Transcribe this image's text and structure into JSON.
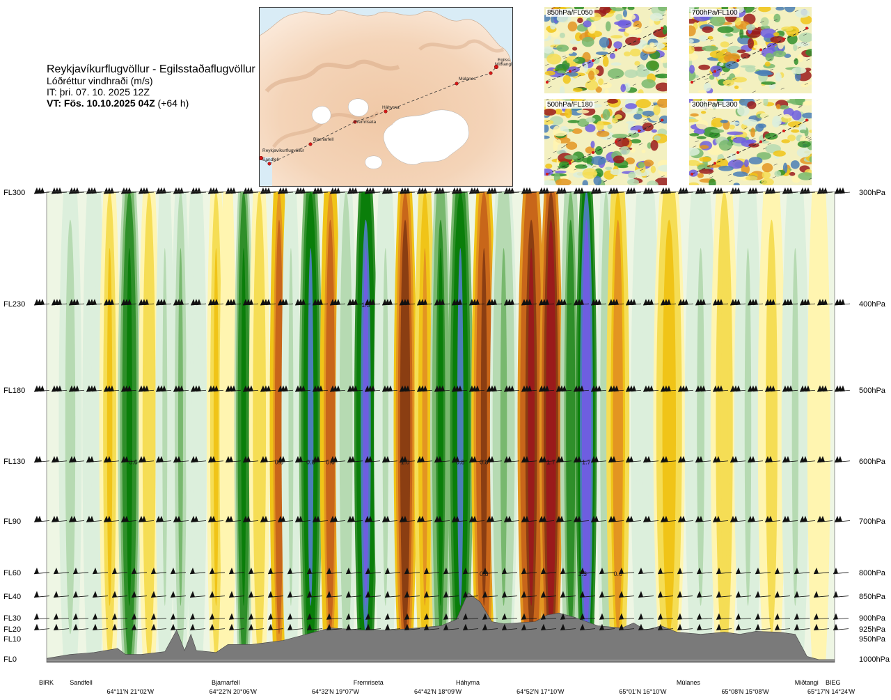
{
  "header": {
    "title": "Reykjavíkurflugvöllur - Egilsstaðaflugvöllur",
    "subtitle": "Lóðréttur vindhraði (m/s)",
    "issue_time": "IT: þri. 07. 10. 2025 12Z",
    "valid_time_bold": "VT: Fös. 10.10.2025 04Z",
    "valid_time_offset": "(+64 h)"
  },
  "route_map": {
    "waypoints": [
      "Reykjavíkurflugvöllur",
      "Sandfell",
      "Bjarnarfell",
      "Fremriseta",
      "Háhyrna",
      "Múlanes",
      "Miðtangi",
      "Egilsstaðaflugvöllur"
    ],
    "waypoint_label_abbrev": "Egilss",
    "route_color": "#d61818"
  },
  "thumbnails": [
    {
      "label": "850hPa/FL050"
    },
    {
      "label": "700hPa/FL100"
    },
    {
      "label": "500hPa/FL180"
    },
    {
      "label": "300hPa/FL300"
    }
  ],
  "chart_data": {
    "type": "heatmap",
    "title": "Lóðréttur vindhraði (m/s)",
    "left_axis_labels": [
      "FL300",
      "FL230",
      "FL180",
      "FL130",
      "FL90",
      "FL60",
      "FL40",
      "FL30",
      "FL20",
      "FL10",
      "FL0"
    ],
    "right_axis_labels": [
      "300hPa",
      "400hPa",
      "500hPa",
      "600hPa",
      "700hPa",
      "800hPa",
      "850hPa",
      "900hPa",
      "925hPa",
      "950hPa",
      "1000hPa"
    ],
    "pressure_levels_hpa": [
      300,
      400,
      500,
      600,
      700,
      800,
      850,
      900,
      925,
      950,
      1000
    ],
    "route_position_range": [
      0,
      100
    ],
    "waypoints": [
      {
        "name": "BIRK",
        "pos": 0
      },
      {
        "name": "Sandfell",
        "pos": 4
      },
      {
        "name": "Bjarnarfell",
        "pos": 22
      },
      {
        "name": "Fremriseta",
        "pos": 40
      },
      {
        "name": "Háhyrna",
        "pos": 53
      },
      {
        "name": "Múlanes",
        "pos": 81
      },
      {
        "name": "Miðtangi",
        "pos": 96
      },
      {
        "name": "BIEG",
        "pos": 100
      }
    ],
    "coordinate_labels": [
      {
        "text": "64°11'N 21°02'W",
        "pos": 11
      },
      {
        "text": "64°22'N 20°06'W",
        "pos": 24
      },
      {
        "text": "64°32'N 19°07'W",
        "pos": 37
      },
      {
        "text": "64°42'N 18°09'W",
        "pos": 50
      },
      {
        "text": "64°52'N 17°10'W",
        "pos": 63
      },
      {
        "text": "65°01'N 16°10'W",
        "pos": 76
      },
      {
        "text": "65°08'N 15°08'W",
        "pos": 89
      },
      {
        "text": "65°17'N 14°24'W",
        "pos": 100
      }
    ],
    "value_labels": [
      {
        "text": "0.6",
        "pos": 11,
        "level": 600
      },
      {
        "text": "0.6",
        "pos": 29.5,
        "level": 600
      },
      {
        "text": "0.8",
        "pos": 33.5,
        "level": 600
      },
      {
        "text": "0.6",
        "pos": 36,
        "level": 600
      },
      {
        "text": "1.0",
        "pos": 45.5,
        "level": 600
      },
      {
        "text": "0.8",
        "pos": 52.5,
        "level": 600
      },
      {
        "text": "0.8",
        "pos": 55.5,
        "level": 600
      },
      {
        "text": "1.7",
        "pos": 64,
        "level": 600
      },
      {
        "text": "1.7",
        "pos": 68.5,
        "level": 600
      },
      {
        "text": "1.3",
        "pos": 40.5,
        "level": 400
      },
      {
        "text": "0.8",
        "pos": 55.5,
        "level": 800
      },
      {
        "text": "1.3",
        "pos": 68,
        "level": 800
      },
      {
        "text": "0.6",
        "pos": 72.5,
        "level": 800
      }
    ],
    "bands": [
      {
        "pos": 3,
        "w": -0.25
      },
      {
        "pos": 6,
        "w": -0.05
      },
      {
        "pos": 8,
        "w": 0.35
      },
      {
        "pos": 10.5,
        "w": -0.8
      },
      {
        "pos": 13,
        "w": 0.3
      },
      {
        "pos": 15,
        "w": -0.2
      },
      {
        "pos": 17,
        "w": -0.35
      },
      {
        "pos": 19,
        "w": -0.15
      },
      {
        "pos": 21.5,
        "w": 0.35
      },
      {
        "pos": 23,
        "w": 0.15
      },
      {
        "pos": 25,
        "w": -0.8
      },
      {
        "pos": 27,
        "w": 0.3
      },
      {
        "pos": 29.5,
        "w": 0.9
      },
      {
        "pos": 31,
        "w": -0.2
      },
      {
        "pos": 33.5,
        "w": -1.1
      },
      {
        "pos": 36,
        "w": 0.9
      },
      {
        "pos": 38,
        "w": -0.3
      },
      {
        "pos": 40.5,
        "w": -1.3
      },
      {
        "pos": 43,
        "w": -0.2
      },
      {
        "pos": 45.5,
        "w": 1.2
      },
      {
        "pos": 48,
        "w": 0.5
      },
      {
        "pos": 50,
        "w": -0.7
      },
      {
        "pos": 52.5,
        "w": -1.0
      },
      {
        "pos": 55.5,
        "w": 1.1
      },
      {
        "pos": 58,
        "w": -0.4
      },
      {
        "pos": 61.5,
        "w": 1.3
      },
      {
        "pos": 64,
        "w": 1.7
      },
      {
        "pos": 66.5,
        "w": -0.6
      },
      {
        "pos": 68.5,
        "w": -1.7
      },
      {
        "pos": 71,
        "w": -0.3
      },
      {
        "pos": 72.5,
        "w": 0.6
      },
      {
        "pos": 76,
        "w": -0.15
      },
      {
        "pos": 79,
        "w": 0.45
      },
      {
        "pos": 83,
        "w": -0.2
      },
      {
        "pos": 86,
        "w": 0.3
      },
      {
        "pos": 89,
        "w": -0.2
      },
      {
        "pos": 92,
        "w": 0.25
      },
      {
        "pos": 95,
        "w": -0.2
      },
      {
        "pos": 98,
        "w": 0.15
      }
    ],
    "terrain_pressure_hpa": [
      {
        "pos": 0,
        "p": 995
      },
      {
        "pos": 3,
        "p": 985
      },
      {
        "pos": 6,
        "p": 980
      },
      {
        "pos": 9,
        "p": 970
      },
      {
        "pos": 10,
        "p": 985
      },
      {
        "pos": 12,
        "p": 985
      },
      {
        "pos": 15,
        "p": 978
      },
      {
        "pos": 16.5,
        "p": 925
      },
      {
        "pos": 17.5,
        "p": 975
      },
      {
        "pos": 18.3,
        "p": 935
      },
      {
        "pos": 19,
        "p": 975
      },
      {
        "pos": 21.5,
        "p": 980
      },
      {
        "pos": 23,
        "p": 960
      },
      {
        "pos": 26,
        "p": 960
      },
      {
        "pos": 30,
        "p": 950
      },
      {
        "pos": 33,
        "p": 935
      },
      {
        "pos": 36,
        "p": 920
      },
      {
        "pos": 40,
        "p": 925
      },
      {
        "pos": 44,
        "p": 925
      },
      {
        "pos": 47,
        "p": 920
      },
      {
        "pos": 50,
        "p": 915
      },
      {
        "pos": 52,
        "p": 900
      },
      {
        "pos": 53.5,
        "p": 840
      },
      {
        "pos": 55,
        "p": 860
      },
      {
        "pos": 56.5,
        "p": 905
      },
      {
        "pos": 58,
        "p": 910
      },
      {
        "pos": 62,
        "p": 905
      },
      {
        "pos": 63.5,
        "p": 890
      },
      {
        "pos": 65,
        "p": 885
      },
      {
        "pos": 67,
        "p": 895
      },
      {
        "pos": 70,
        "p": 915
      },
      {
        "pos": 73,
        "p": 920
      },
      {
        "pos": 74.5,
        "p": 908
      },
      {
        "pos": 76,
        "p": 925
      },
      {
        "pos": 78,
        "p": 915
      },
      {
        "pos": 80,
        "p": 930
      },
      {
        "pos": 83,
        "p": 935
      },
      {
        "pos": 86,
        "p": 930
      },
      {
        "pos": 88,
        "p": 935
      },
      {
        "pos": 90,
        "p": 928
      },
      {
        "pos": 93,
        "p": 930
      },
      {
        "pos": 95,
        "p": 935
      },
      {
        "pos": 96.5,
        "p": 990
      },
      {
        "pos": 98,
        "p": 998
      },
      {
        "pos": 100,
        "p": 998
      }
    ],
    "wind_barb_levels_hpa": [
      300,
      400,
      500,
      600,
      700,
      800,
      850,
      900,
      925
    ],
    "colors": {
      "down_scale": [
        "#dcefdc",
        "#b6dab2",
        "#78b86e",
        "#2f8f2a",
        "#0a7e0a",
        "#4a7fb6",
        "#6e5ee0"
      ],
      "up_scale": [
        "#fff5b0",
        "#f5dd55",
        "#f0c418",
        "#e39521",
        "#c8661a",
        "#8b3e12",
        "#9a1b1b"
      ],
      "terrain": "#7a7a7a",
      "background": "#ffffff"
    }
  }
}
